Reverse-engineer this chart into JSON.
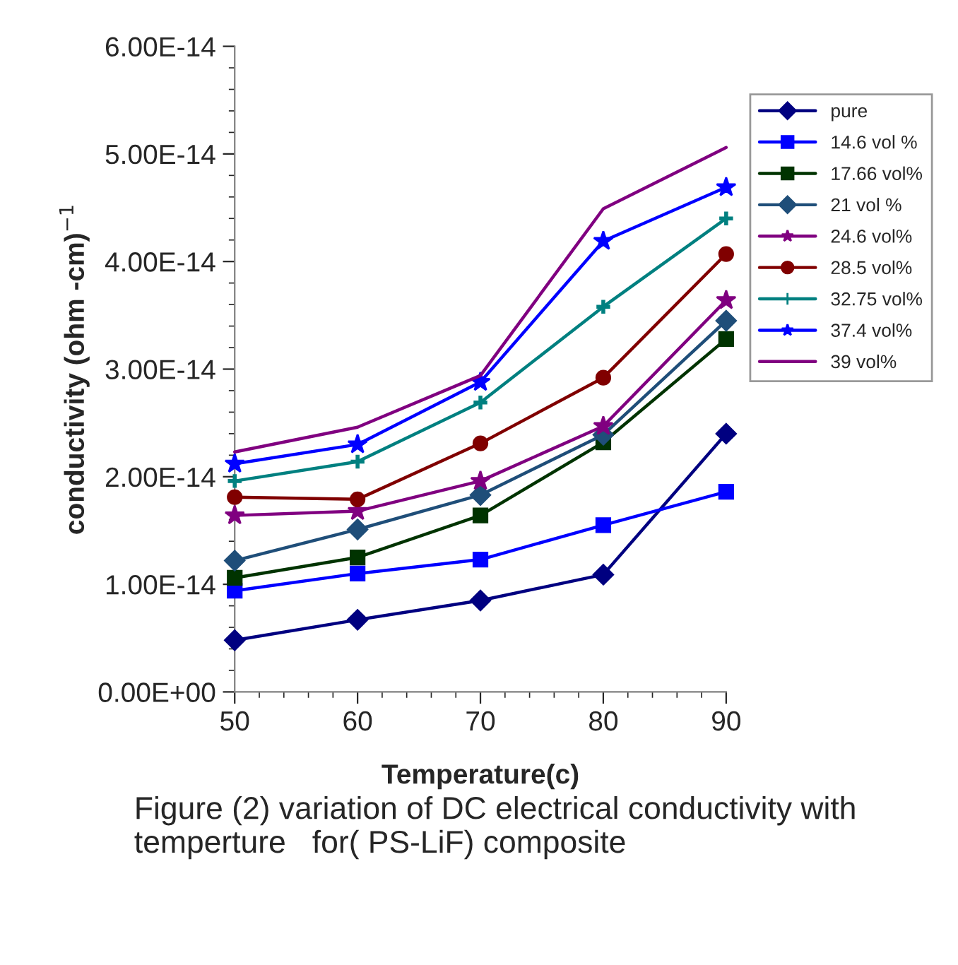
{
  "chart_data": {
    "type": "line",
    "xlabel": "Temperature(c)",
    "ylabel": "conductivity (ohm -cm)$^{−1}$",
    "x": [
      50,
      60,
      70,
      80,
      90
    ],
    "xlim": [
      50,
      90
    ],
    "xticks": [
      50,
      60,
      70,
      80,
      90
    ],
    "ylim": [
      0,
      6e-14
    ],
    "yticks": [
      {
        "value": 0,
        "label": "0.00E+00"
      },
      {
        "value": 1e-14,
        "label": "1.00E-14"
      },
      {
        "value": 2e-14,
        "label": "2.00E-14"
      },
      {
        "value": 3e-14,
        "label": "3.00E-14"
      },
      {
        "value": 4e-14,
        "label": "4.00E-14"
      },
      {
        "value": 5e-14,
        "label": "5.00E-14"
      },
      {
        "value": 6e-14,
        "label": "6.00E-14"
      }
    ],
    "grid": false,
    "legend": "right",
    "line_style": "solid",
    "series": [
      {
        "name": "pure",
        "color": "#000080",
        "marker": "diamond",
        "values": [
          4.8e-15,
          6.7e-15,
          8.5e-15,
          1.09e-14,
          2.4e-14
        ]
      },
      {
        "name": "14.6 vol %",
        "color": "#0000ff",
        "marker": "square",
        "values": [
          9.4e-15,
          1.1e-14,
          1.23e-14,
          1.55e-14,
          1.86e-14
        ]
      },
      {
        "name": "17.66 vol%",
        "color": "#003300",
        "marker": "square",
        "values": [
          1.06e-14,
          1.25e-14,
          1.64e-14,
          2.32e-14,
          3.28e-14
        ]
      },
      {
        "name": "21 vol %",
        "color": "#1f4e79",
        "marker": "diamond",
        "values": [
          1.22e-14,
          1.51e-14,
          1.83e-14,
          2.39e-14,
          3.45e-14
        ]
      },
      {
        "name": "24.6 vol%",
        "color": "#800080",
        "marker": "star",
        "values": [
          1.64e-14,
          1.68e-14,
          1.96e-14,
          2.47e-14,
          3.64e-14
        ]
      },
      {
        "name": "28.5 vol%",
        "color": "#800000",
        "marker": "circle",
        "values": [
          1.81e-14,
          1.79e-14,
          2.31e-14,
          2.92e-14,
          4.07e-14
        ]
      },
      {
        "name": "32.75 vol%",
        "color": "#008080",
        "marker": "cross",
        "values": [
          1.96e-14,
          2.14e-14,
          2.69e-14,
          3.58e-14,
          4.4e-14
        ]
      },
      {
        "name": "37.4 vol%",
        "color": "#0000ff",
        "marker": "star",
        "values": [
          2.12e-14,
          2.3e-14,
          2.88e-14,
          4.19e-14,
          4.69e-14
        ]
      },
      {
        "name": "39 vol%",
        "color": "#800080",
        "marker": "none",
        "values": [
          2.23e-14,
          2.46e-14,
          2.94e-14,
          4.49e-14,
          5.06e-14
        ]
      }
    ],
    "annotations": [
      "Figure (2) variation of DC electrical conductivity with temperture   for( PS-LiF) composite"
    ]
  }
}
